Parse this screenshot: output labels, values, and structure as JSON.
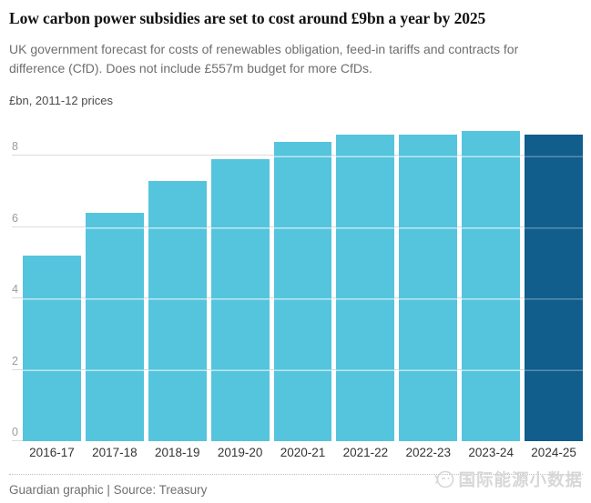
{
  "title": "Low carbon power subsidies are set to cost around £9bn a year by 2025",
  "subtitle": "UK government forecast for costs of renewables obligation, feed-in tariffs and contracts for difference (CfD). Does not include £557m budget for more CfDs.",
  "units_label": "£bn, 2011-12 prices",
  "footer": "Guardian graphic | Source: Treasury",
  "watermark": {
    "icon": "watermark-logo-icon",
    "text": "国际能源小数据"
  },
  "colors": {
    "bar_light": "#55c4dd",
    "bar_dark": "#115d8c",
    "gridline": "#dcdcdc",
    "ytick_label": "#9b9b9b",
    "xtick_label": "#333333",
    "title": "#121212",
    "subtitle": "#6e6e6e",
    "footer": "#6f6f6f",
    "watermark": "#d7d7d7"
  },
  "chart_data": {
    "type": "bar",
    "title": "Low carbon power subsidies are set to cost around £9bn a year by 2025",
    "subtitle": "UK government forecast for costs of renewables obligation, feed-in tariffs and contracts for difference (CfD). Does not include £557m budget for more CfDs.",
    "categories": [
      "2016-17",
      "2017-18",
      "2018-19",
      "2019-20",
      "2020-21",
      "2021-22",
      "2022-23",
      "2023-24",
      "2024-25"
    ],
    "values": [
      5.2,
      6.4,
      7.3,
      7.9,
      8.4,
      8.6,
      8.6,
      8.7,
      8.6
    ],
    "highlight_category": "2024-25",
    "xlabel": "",
    "ylabel": "£bn, 2011-12 prices",
    "yticks": [
      0,
      2,
      4,
      6,
      8
    ],
    "ylim": [
      0,
      8.8
    ],
    "grid": true,
    "legend": false,
    "source": "Guardian graphic | Source: Treasury"
  }
}
